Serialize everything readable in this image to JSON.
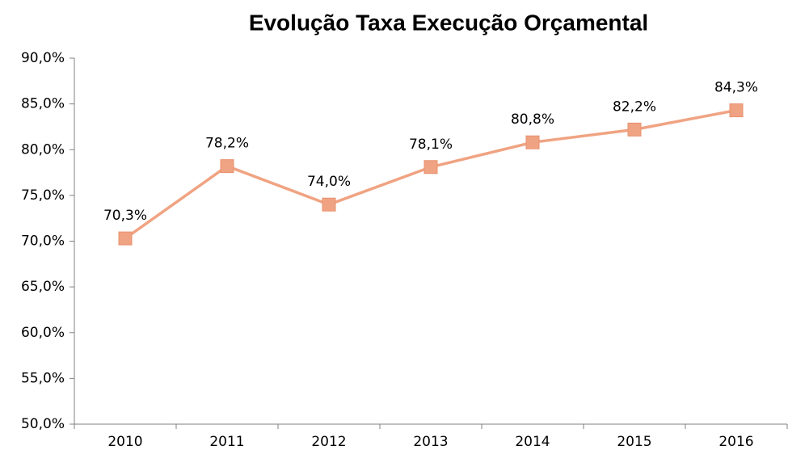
{
  "chart_data": {
    "type": "line",
    "title": "Evolução Taxa Execução Orçamental",
    "categories": [
      "2010",
      "2011",
      "2012",
      "2013",
      "2014",
      "2015",
      "2016"
    ],
    "values": [
      70.3,
      78.2,
      74.0,
      78.1,
      80.8,
      82.2,
      84.3
    ],
    "value_labels": [
      "70,3%",
      "78,2%",
      "74,0%",
      "78,1%",
      "80,8%",
      "82,2%",
      "84,3%"
    ],
    "color": "#f0a382",
    "ylim": [
      50,
      90
    ],
    "yticks": [
      {
        "value": 50,
        "label": "50,0%"
      },
      {
        "value": 55,
        "label": "55,0%"
      },
      {
        "value": 60,
        "label": "60,0%"
      },
      {
        "value": 65,
        "label": "65,0%"
      },
      {
        "value": 70,
        "label": "70,0%"
      },
      {
        "value": 75,
        "label": "75,0%"
      },
      {
        "value": 80,
        "label": "80,0%"
      },
      {
        "value": 85,
        "label": "85,0%"
      },
      {
        "value": 90,
        "label": "90,0%"
      }
    ],
    "grid": false
  }
}
